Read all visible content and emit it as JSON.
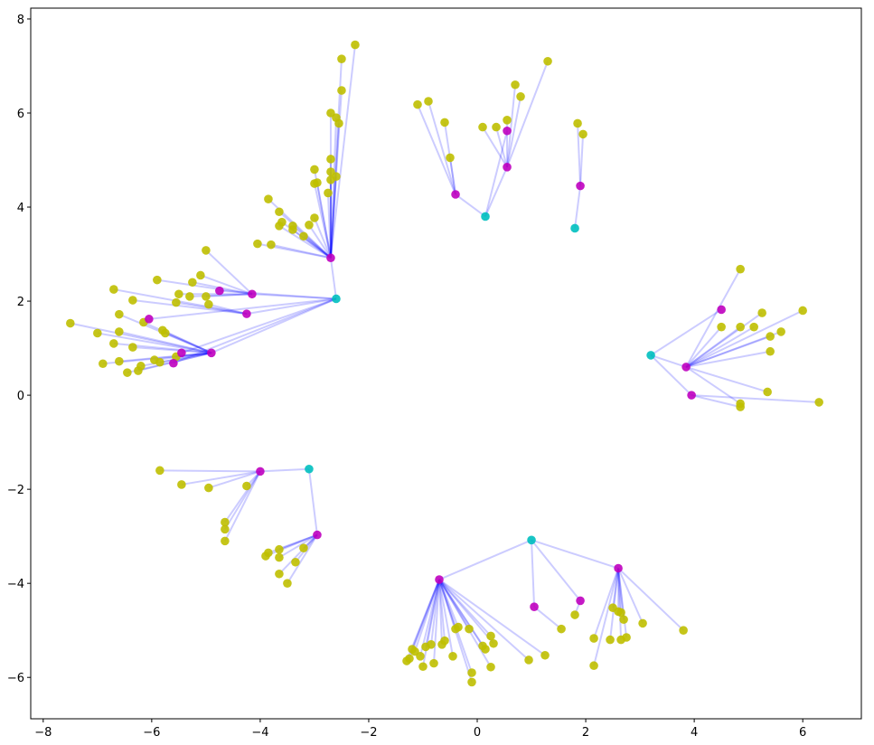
{
  "chart_data": {
    "type": "tree-scatter",
    "xlim": [
      -8.23,
      7.08
    ],
    "ylim": [
      -6.88,
      8.23
    ],
    "xticks": [
      {
        "value": -8,
        "label": "−8"
      },
      {
        "value": -6,
        "label": "−6"
      },
      {
        "value": -4,
        "label": "−4"
      },
      {
        "value": -2,
        "label": "−2"
      },
      0,
      2,
      4,
      6
    ],
    "yticks": [
      {
        "value": -6,
        "label": "−6"
      },
      {
        "value": -4,
        "label": "−4"
      },
      {
        "value": -2,
        "label": "−2"
      },
      0,
      2,
      4,
      6,
      8
    ],
    "edge_color": "#0000ff",
    "edge_alpha": 0.2,
    "series": [
      {
        "color": "#00bfbf",
        "x": [
          -2.6,
          0.15,
          1.8,
          3.2,
          -3.1,
          1.0
        ],
        "y": [
          2.05,
          3.8,
          3.55,
          0.85,
          -1.57,
          -3.08
        ]
      },
      {
        "color": "#bf00bf",
        "x": [
          -2.7,
          -4.15,
          -4.25,
          -4.9,
          -4.75,
          -6.05,
          -5.45,
          -5.6,
          -0.4,
          0.55,
          0.55,
          1.9,
          3.85,
          3.95,
          4.5,
          -4.0,
          -2.95,
          -0.7,
          2.6,
          1.05,
          1.9
        ],
        "y": [
          2.92,
          2.15,
          1.73,
          0.9,
          2.22,
          1.62,
          0.9,
          0.68,
          4.27,
          4.85,
          5.62,
          4.45,
          0.6,
          0.0,
          1.82,
          -1.62,
          -2.97,
          -3.92,
          -3.68,
          -4.5,
          -4.37
        ],
        "parent": [
          0,
          0,
          0,
          0,
          0,
          0,
          0,
          0,
          1,
          1,
          1,
          2,
          3,
          3,
          3,
          4,
          4,
          5,
          5,
          5,
          5
        ]
      },
      {
        "color": "#bfbf00",
        "x": [
          -2.25,
          -2.5,
          -2.5,
          -2.7,
          -2.6,
          -2.55,
          -2.7,
          -3.0,
          -2.7,
          -2.6,
          -2.7,
          -3.0,
          -2.95,
          -2.75,
          -3.85,
          -3.65,
          -3.0,
          -3.6,
          -3.4,
          -3.65,
          -3.1,
          -3.4,
          -3.2,
          -4.05,
          -3.8,
          -5.0,
          -5.1,
          -5.25,
          -5.9,
          -5.5,
          -5.3,
          -5.0,
          -6.7,
          -6.35,
          -5.55,
          -4.95,
          -7.5,
          -7.0,
          -6.6,
          -6.6,
          -6.15,
          -5.8,
          -5.75,
          -6.7,
          -6.35,
          -6.9,
          -6.6,
          -6.45,
          -6.2,
          -6.25,
          -5.95,
          -5.85,
          -5.55,
          -1.1,
          -0.9,
          -0.6,
          -0.5,
          0.1,
          0.35,
          0.55,
          0.7,
          0.8,
          1.3,
          1.85,
          1.95,
          4.85,
          4.5,
          4.85,
          5.1,
          5.25,
          6.0,
          5.6,
          5.4,
          5.4,
          5.35,
          4.85,
          4.85,
          6.3,
          -5.85,
          -5.45,
          -4.95,
          -4.25,
          -4.65,
          -4.65,
          -4.65,
          -3.9,
          -3.85,
          -3.65,
          -3.65,
          -3.2,
          -3.35,
          -3.65,
          -3.5,
          -1.3,
          -1.25,
          -1.2,
          -1.15,
          -1.05,
          -1.0,
          -0.95,
          -0.85,
          -0.8,
          -0.65,
          -0.6,
          -0.45,
          -0.4,
          -0.35,
          -0.15,
          -0.1,
          -0.1,
          0.1,
          0.15,
          0.25,
          0.3,
          0.25,
          0.95,
          1.25,
          2.15,
          2.15,
          2.45,
          2.5,
          2.6,
          2.65,
          2.7,
          2.65,
          2.75,
          3.05,
          3.8,
          1.55,
          1.8
        ],
        "y": [
          7.45,
          7.15,
          6.48,
          6.0,
          5.9,
          5.78,
          5.02,
          4.8,
          4.75,
          4.65,
          4.58,
          4.5,
          4.52,
          4.3,
          4.17,
          3.9,
          3.77,
          3.68,
          3.6,
          3.6,
          3.62,
          3.52,
          3.38,
          3.22,
          3.2,
          3.08,
          2.55,
          2.4,
          2.45,
          2.15,
          2.1,
          2.1,
          2.25,
          2.02,
          1.97,
          1.93,
          1.53,
          1.32,
          1.72,
          1.35,
          1.55,
          1.38,
          1.32,
          1.1,
          1.02,
          0.67,
          0.72,
          0.48,
          0.62,
          0.52,
          0.75,
          0.7,
          0.82,
          6.18,
          6.25,
          5.8,
          5.05,
          5.7,
          5.7,
          5.85,
          6.6,
          6.35,
          7.1,
          5.78,
          5.55,
          2.68,
          1.45,
          1.45,
          1.45,
          1.75,
          1.8,
          1.35,
          1.25,
          0.93,
          0.07,
          -0.18,
          -0.25,
          -0.15,
          -1.6,
          -1.9,
          -1.97,
          -1.93,
          -2.7,
          -2.85,
          -3.1,
          -3.42,
          -3.35,
          -3.28,
          -3.45,
          -3.25,
          -3.55,
          -3.8,
          -4.0,
          -5.65,
          -5.6,
          -5.4,
          -5.45,
          -5.55,
          -5.77,
          -5.35,
          -5.3,
          -5.7,
          -5.3,
          -5.22,
          -5.55,
          -4.97,
          -4.93,
          -4.97,
          -5.9,
          -6.1,
          -5.33,
          -5.4,
          -5.12,
          -5.28,
          -5.78,
          -5.63,
          -5.53,
          -5.17,
          -5.75,
          -5.2,
          -4.52,
          -4.6,
          -4.62,
          -4.77,
          -5.2,
          -5.15,
          -4.85,
          -5.0,
          -4.97,
          -4.67
        ],
        "parent": [
          0,
          0,
          0,
          0,
          0,
          0,
          0,
          0,
          0,
          0,
          0,
          0,
          0,
          0,
          0,
          0,
          0,
          0,
          0,
          0,
          0,
          0,
          0,
          0,
          0,
          1,
          1,
          1,
          1,
          1,
          1,
          1,
          2,
          2,
          2,
          2,
          3,
          3,
          3,
          3,
          3,
          3,
          3,
          3,
          3,
          3,
          3,
          3,
          3,
          3,
          3,
          3,
          3,
          8,
          8,
          8,
          8,
          9,
          9,
          9,
          9,
          9,
          9,
          11,
          11,
          12,
          12,
          12,
          12,
          12,
          12,
          12,
          12,
          12,
          12,
          12,
          13,
          13,
          15,
          15,
          15,
          15,
          15,
          15,
          15,
          16,
          16,
          16,
          16,
          16,
          16,
          16,
          16,
          17,
          17,
          17,
          17,
          17,
          17,
          17,
          17,
          17,
          17,
          17,
          17,
          17,
          17,
          17,
          17,
          17,
          17,
          17,
          17,
          17,
          17,
          17,
          17,
          18,
          18,
          18,
          18,
          18,
          18,
          18,
          18,
          18,
          18,
          18,
          19,
          20
        ]
      }
    ]
  }
}
